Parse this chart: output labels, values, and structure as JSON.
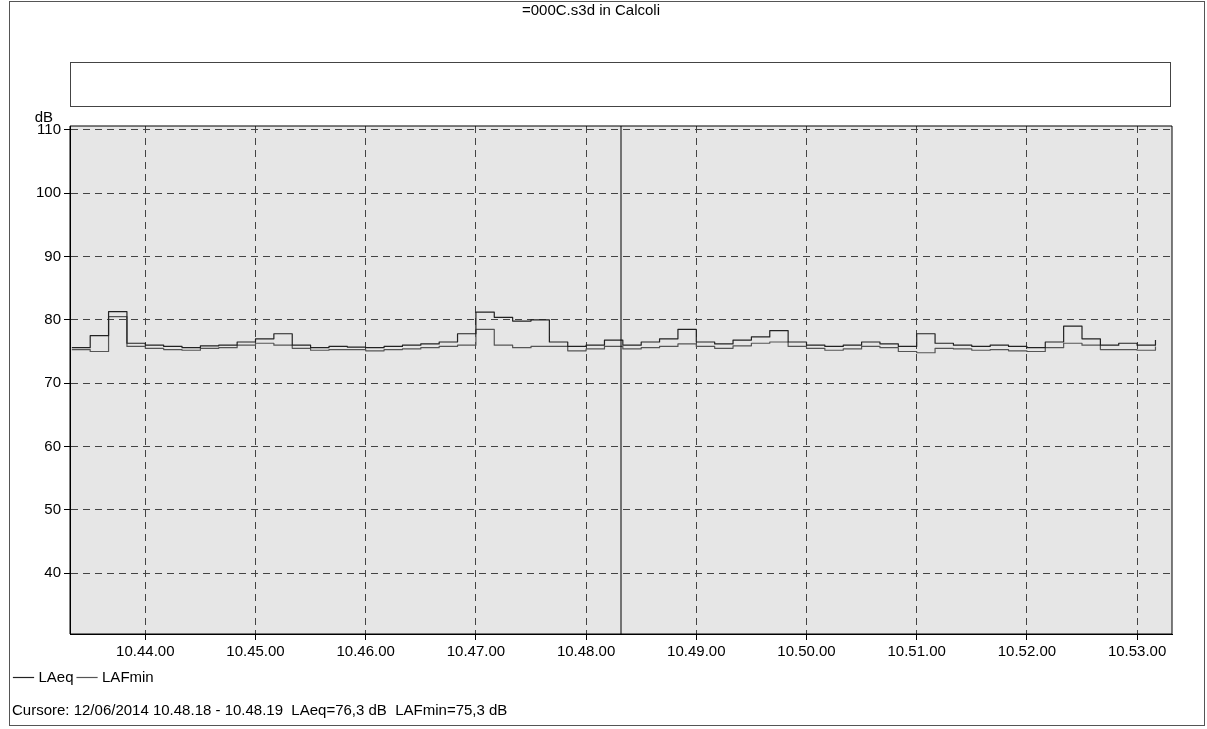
{
  "chart_data": {
    "type": "step",
    "title": "=000C.s3d in Calcoli",
    "ylabel": "dB",
    "x": [
      "2014-06-12T10:43:20",
      "2014-06-12T10:43:30",
      "2014-06-12T10:43:40",
      "2014-06-12T10:43:50",
      "2014-06-12T10:44:00",
      "2014-06-12T10:44:10",
      "2014-06-12T10:44:20",
      "2014-06-12T10:44:30",
      "2014-06-12T10:44:40",
      "2014-06-12T10:44:50",
      "2014-06-12T10:45:00",
      "2014-06-12T10:45:10",
      "2014-06-12T10:45:20",
      "2014-06-12T10:45:30",
      "2014-06-12T10:45:40",
      "2014-06-12T10:45:50",
      "2014-06-12T10:46:00",
      "2014-06-12T10:46:10",
      "2014-06-12T10:46:20",
      "2014-06-12T10:46:30",
      "2014-06-12T10:46:40",
      "2014-06-12T10:46:50",
      "2014-06-12T10:47:00",
      "2014-06-12T10:47:10",
      "2014-06-12T10:47:20",
      "2014-06-12T10:47:30",
      "2014-06-12T10:47:40",
      "2014-06-12T10:47:50",
      "2014-06-12T10:48:00",
      "2014-06-12T10:48:10",
      "2014-06-12T10:48:20",
      "2014-06-12T10:48:30",
      "2014-06-12T10:48:40",
      "2014-06-12T10:48:50",
      "2014-06-12T10:49:00",
      "2014-06-12T10:49:10",
      "2014-06-12T10:49:20",
      "2014-06-12T10:49:30",
      "2014-06-12T10:49:40",
      "2014-06-12T10:49:50",
      "2014-06-12T10:50:00",
      "2014-06-12T10:50:10",
      "2014-06-12T10:50:20",
      "2014-06-12T10:50:30",
      "2014-06-12T10:50:40",
      "2014-06-12T10:50:50",
      "2014-06-12T10:51:00",
      "2014-06-12T10:51:10",
      "2014-06-12T10:51:20",
      "2014-06-12T10:51:30",
      "2014-06-12T10:51:40",
      "2014-06-12T10:51:50",
      "2014-06-12T10:52:00",
      "2014-06-12T10:52:10",
      "2014-06-12T10:52:20",
      "2014-06-12T10:52:30",
      "2014-06-12T10:52:40",
      "2014-06-12T10:52:50",
      "2014-06-12T10:53:00",
      "2014-06-12T10:53:10"
    ],
    "series": [
      {
        "name": "LAeq",
        "color": "#222222",
        "values": [
          75.6,
          77.5,
          81.3,
          76.3,
          76.0,
          75.8,
          75.6,
          75.9,
          76.0,
          76.5,
          77.0,
          77.8,
          76.0,
          75.6,
          75.8,
          75.7,
          75.6,
          75.8,
          76.0,
          76.2,
          76.5,
          77.8,
          81.2,
          80.4,
          79.8,
          80.0,
          76.5,
          75.8,
          76.0,
          76.8,
          76.0,
          76.5,
          77.0,
          78.5,
          76.5,
          76.2,
          76.8,
          77.3,
          78.3,
          76.5,
          76.0,
          75.8,
          76.0,
          76.5,
          76.2,
          75.8,
          77.8,
          76.3,
          76.0,
          75.8,
          76.0,
          75.8,
          75.6,
          76.5,
          79.0,
          77.0,
          76.0,
          76.3,
          76.0,
          76.8
        ]
      },
      {
        "name": "LAFmin",
        "color": "#555555",
        "values": [
          75.3,
          75.0,
          80.5,
          75.8,
          75.5,
          75.3,
          75.2,
          75.5,
          75.6,
          76.0,
          76.3,
          76.0,
          75.5,
          75.2,
          75.3,
          75.3,
          75.1,
          75.3,
          75.4,
          75.6,
          75.8,
          76.0,
          78.5,
          76.0,
          75.6,
          75.8,
          75.8,
          75.1,
          75.4,
          75.8,
          75.4,
          75.6,
          75.8,
          76.2,
          75.8,
          75.5,
          75.9,
          76.3,
          76.5,
          75.8,
          75.5,
          75.2,
          75.4,
          75.8,
          75.6,
          75.0,
          74.8,
          75.5,
          75.4,
          75.2,
          75.3,
          75.1,
          75.0,
          75.6,
          76.3,
          76.0,
          75.3,
          75.3,
          75.2,
          75.8
        ]
      }
    ],
    "xlim": [
      "2014-06-12T10:43:19",
      "2014-06-12T10:53:19"
    ],
    "xticks": [
      {
        "value": "2014-06-12T10:44:00",
        "label": "10.44.00"
      },
      {
        "value": "2014-06-12T10:45:00",
        "label": "10.45.00"
      },
      {
        "value": "2014-06-12T10:46:00",
        "label": "10.46.00"
      },
      {
        "value": "2014-06-12T10:47:00",
        "label": "10.47.00"
      },
      {
        "value": "2014-06-12T10:48:00",
        "label": "10.48.00"
      },
      {
        "value": "2014-06-12T10:49:00",
        "label": "10.49.00"
      },
      {
        "value": "2014-06-12T10:50:00",
        "label": "10.50.00"
      },
      {
        "value": "2014-06-12T10:51:00",
        "label": "10.51.00"
      },
      {
        "value": "2014-06-12T10:52:00",
        "label": "10.52.00"
      },
      {
        "value": "2014-06-12T10:53:00",
        "label": "10.53.00"
      }
    ],
    "ylim": [
      30.4,
      110.6
    ],
    "yticks": [
      40,
      50,
      60,
      70,
      80,
      90,
      100,
      110
    ],
    "grid": true,
    "legend": "bottom left",
    "line_style": "solid",
    "marker": "none",
    "ref_lines": [
      {
        "axis": "x",
        "value": "2014-06-12T10:48:19",
        "color": "#000000"
      }
    ],
    "annotations": [
      "Cursore: 12/06/2014 10.48.18 - 10.48.19  LAeq=76,3 dB  LAFmin=75,3 dB"
    ]
  }
}
